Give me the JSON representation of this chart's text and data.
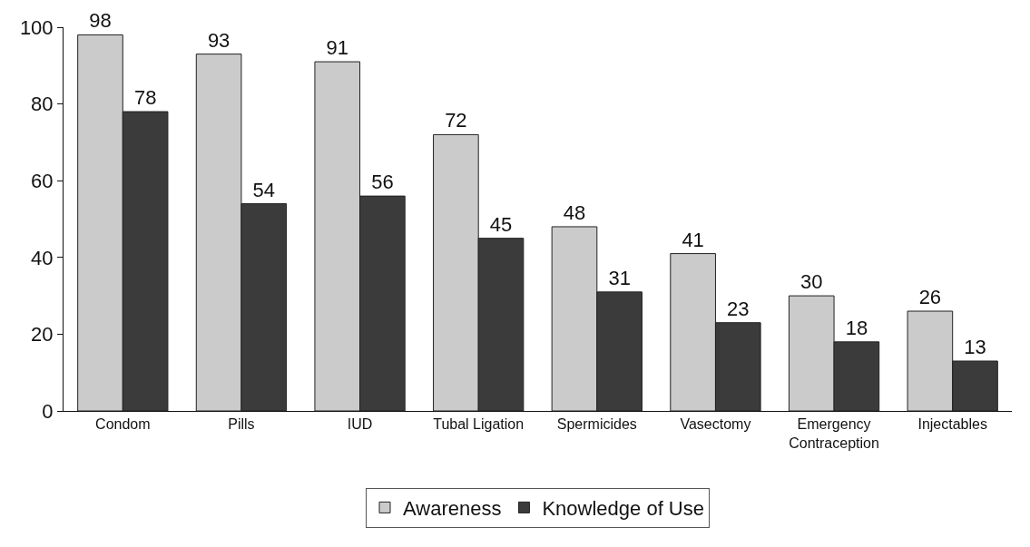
{
  "chart_data": {
    "type": "bar",
    "categories": [
      "Condom",
      "Pills",
      "IUD",
      "Tubal Ligation",
      "Spermicides",
      "Vasectomy",
      "Emergency\nContraception",
      "Injectables"
    ],
    "series": [
      {
        "name": "Awareness",
        "color": "#cbcbcb",
        "values": [
          98,
          93,
          91,
          72,
          48,
          41,
          30,
          26
        ]
      },
      {
        "name": "Knowledge of Use",
        "color": "#3b3b3b",
        "values": [
          78,
          54,
          56,
          45,
          31,
          23,
          18,
          13
        ]
      }
    ],
    "ylim": [
      0,
      100
    ],
    "yticks": [
      0,
      20,
      40,
      60,
      80,
      100
    ],
    "grid": false,
    "legend": "bottom",
    "data_labels": true
  }
}
